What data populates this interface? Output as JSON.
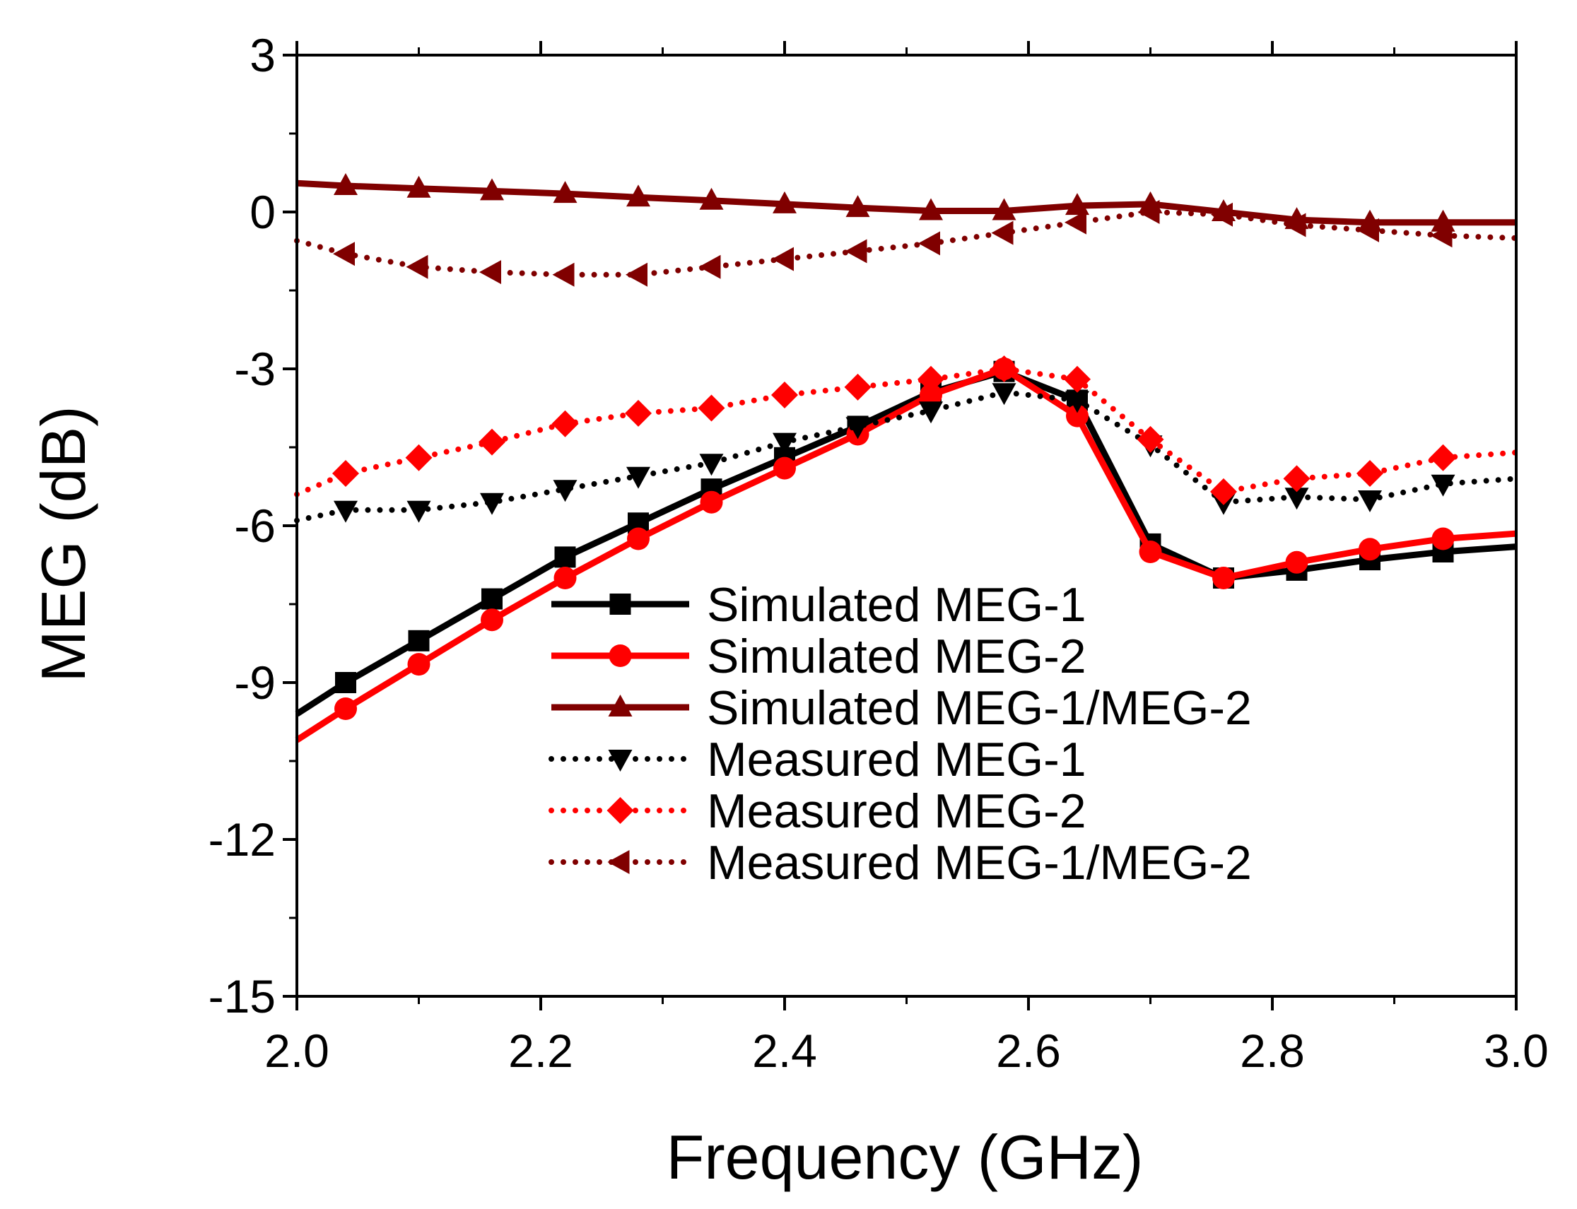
{
  "chart_data": {
    "type": "line",
    "xlabel": "Frequency (GHz)",
    "ylabel": "MEG (dB)",
    "xlim": [
      2.0,
      3.0
    ],
    "ylim": [
      -15,
      3
    ],
    "x_ticks": [
      "2.0",
      "2.2",
      "2.4",
      "2.6",
      "2.8",
      "3.0"
    ],
    "y_ticks": [
      "3",
      "0",
      "-3",
      "-6",
      "-9",
      "-12",
      "-15"
    ],
    "legend_position": "center-right",
    "x": [
      2.0,
      2.04,
      2.1,
      2.16,
      2.22,
      2.28,
      2.34,
      2.4,
      2.46,
      2.52,
      2.58,
      2.64,
      2.7,
      2.76,
      2.82,
      2.88,
      2.94,
      3.0
    ],
    "series": [
      {
        "name": "Simulated MEG-1",
        "color": "#000000",
        "style": "solid",
        "marker": "square",
        "values": [
          -9.6,
          -9.0,
          -8.2,
          -7.4,
          -6.6,
          -5.95,
          -5.3,
          -4.7,
          -4.1,
          -3.45,
          -3.05,
          -3.6,
          -6.35,
          -7.0,
          -6.85,
          -6.65,
          -6.5,
          -6.4
        ]
      },
      {
        "name": "Simulated MEG-2",
        "color": "#ff0000",
        "style": "solid",
        "marker": "circle",
        "values": [
          -10.1,
          -9.5,
          -8.65,
          -7.8,
          -7.0,
          -6.25,
          -5.55,
          -4.9,
          -4.25,
          -3.5,
          -3.0,
          -3.9,
          -6.5,
          -7.0,
          -6.7,
          -6.45,
          -6.25,
          -6.15
        ]
      },
      {
        "name": "Simulated MEG-1/MEG-2",
        "color": "#800000",
        "style": "solid",
        "marker": "triangle-up",
        "values": [
          0.55,
          0.5,
          0.45,
          0.4,
          0.35,
          0.28,
          0.22,
          0.15,
          0.08,
          0.02,
          0.02,
          0.12,
          0.15,
          0.0,
          -0.15,
          -0.2,
          -0.2,
          -0.2
        ]
      },
      {
        "name": "Measured MEG-1",
        "color": "#000000",
        "style": "dotted",
        "marker": "triangle-down",
        "values": [
          -5.9,
          -5.7,
          -5.7,
          -5.55,
          -5.3,
          -5.05,
          -4.8,
          -4.4,
          -4.1,
          -3.8,
          -3.45,
          -3.6,
          -4.45,
          -5.55,
          -5.45,
          -5.5,
          -5.2,
          -5.1
        ]
      },
      {
        "name": "Measured MEG-2",
        "color": "#ff0000",
        "style": "dotted",
        "marker": "diamond",
        "values": [
          -5.4,
          -5.0,
          -4.7,
          -4.4,
          -4.05,
          -3.85,
          -3.75,
          -3.5,
          -3.35,
          -3.2,
          -3.0,
          -3.2,
          -4.35,
          -5.35,
          -5.1,
          -5.0,
          -4.7,
          -4.6
        ]
      },
      {
        "name": "Measured MEG-1/MEG-2",
        "color": "#800000",
        "style": "dotted",
        "marker": "triangle-left",
        "values": [
          -0.55,
          -0.8,
          -1.05,
          -1.15,
          -1.2,
          -1.2,
          -1.05,
          -0.9,
          -0.75,
          -0.6,
          -0.4,
          -0.2,
          0.0,
          -0.05,
          -0.25,
          -0.35,
          -0.45,
          -0.5
        ]
      }
    ]
  }
}
